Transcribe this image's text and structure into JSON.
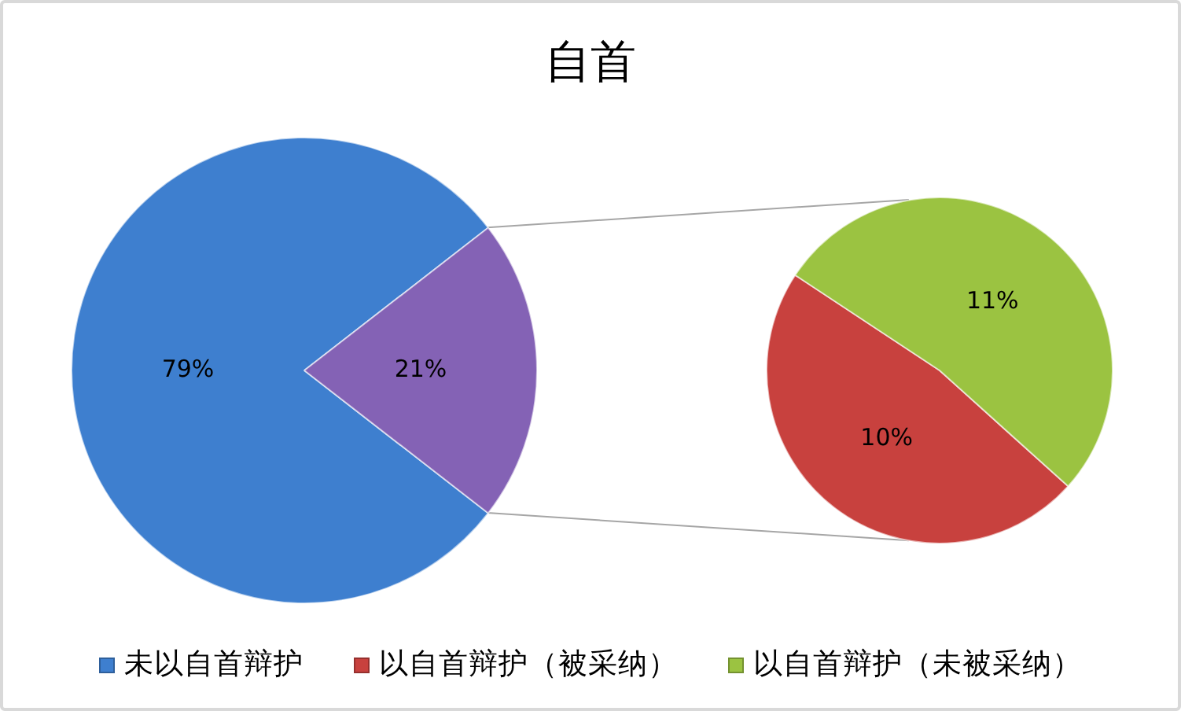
{
  "chart_data": [
    {
      "type": "pie",
      "title": "自首",
      "categories": [
        "未以自首辩护",
        null
      ],
      "values": [
        79,
        21
      ],
      "value_labels": [
        "79%",
        "21%"
      ],
      "colors": [
        "#3e7fcf",
        "#8462b5"
      ],
      "legend": "bottom"
    },
    {
      "type": "pie",
      "categories": [
        "以自首辩护（被采纳）",
        "以自首辩护（未被采纳）"
      ],
      "values": [
        10,
        11
      ],
      "value_labels": [
        "10%",
        "11%"
      ],
      "colors": [
        "#c8413e",
        "#9bc341"
      ],
      "legend": "bottom"
    }
  ]
}
